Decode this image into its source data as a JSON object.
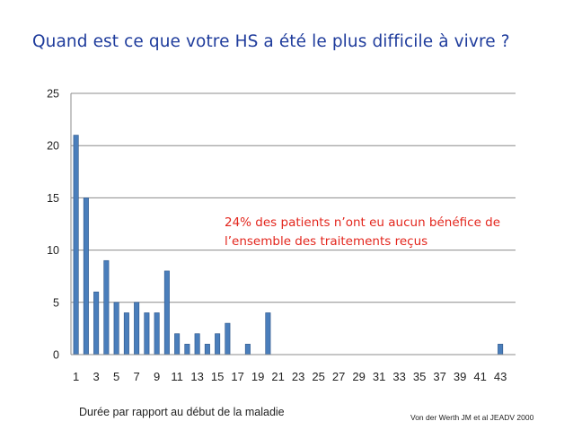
{
  "slide": {
    "title": "Quand est ce que votre HS a été le plus difficile à vivre ?",
    "annotation_lines": [
      "24% des patients n’ont eu aucun bénéfice de",
      "l’ensemble des traitements reçus"
    ],
    "source": "Von der Werth JM et al JEADV 2000"
  },
  "colors": {
    "title": "#1f3c9c",
    "annotation": "#e3261d",
    "bar_fill": "#4a7ebb",
    "bar_stroke": "#2d5588",
    "grid": "#8c8c8c"
  },
  "chart_data": {
    "type": "bar",
    "xlabel": "Durée par rapport au début de la maladie",
    "ylabel": "",
    "ylim": [
      0,
      25
    ],
    "yticks": [
      0,
      5,
      10,
      15,
      20,
      25
    ],
    "grid": true,
    "x_tick_labels": [
      "1",
      "3",
      "5",
      "7",
      "9",
      "11",
      "13",
      "15",
      "17",
      "19",
      "21",
      "23",
      "25",
      "27",
      "29",
      "31",
      "33",
      "35",
      "37",
      "39",
      "41",
      "43"
    ],
    "categories": [
      1,
      2,
      3,
      4,
      5,
      6,
      7,
      8,
      9,
      10,
      11,
      12,
      13,
      14,
      15,
      16,
      17,
      18,
      19,
      20,
      21,
      22,
      23,
      24,
      25,
      26,
      27,
      28,
      29,
      30,
      31,
      32,
      33,
      34,
      35,
      36,
      37,
      38,
      39,
      40,
      41,
      42,
      43,
      44
    ],
    "values": [
      21,
      15,
      6,
      9,
      5,
      4,
      5,
      4,
      4,
      8,
      2,
      1,
      2,
      1,
      2,
      3,
      0,
      1,
      0,
      4,
      0,
      0,
      0,
      0,
      0,
      0,
      0,
      0,
      0,
      0,
      0,
      0,
      0,
      0,
      0,
      0,
      0,
      0,
      0,
      0,
      0,
      0,
      1,
      0
    ]
  }
}
